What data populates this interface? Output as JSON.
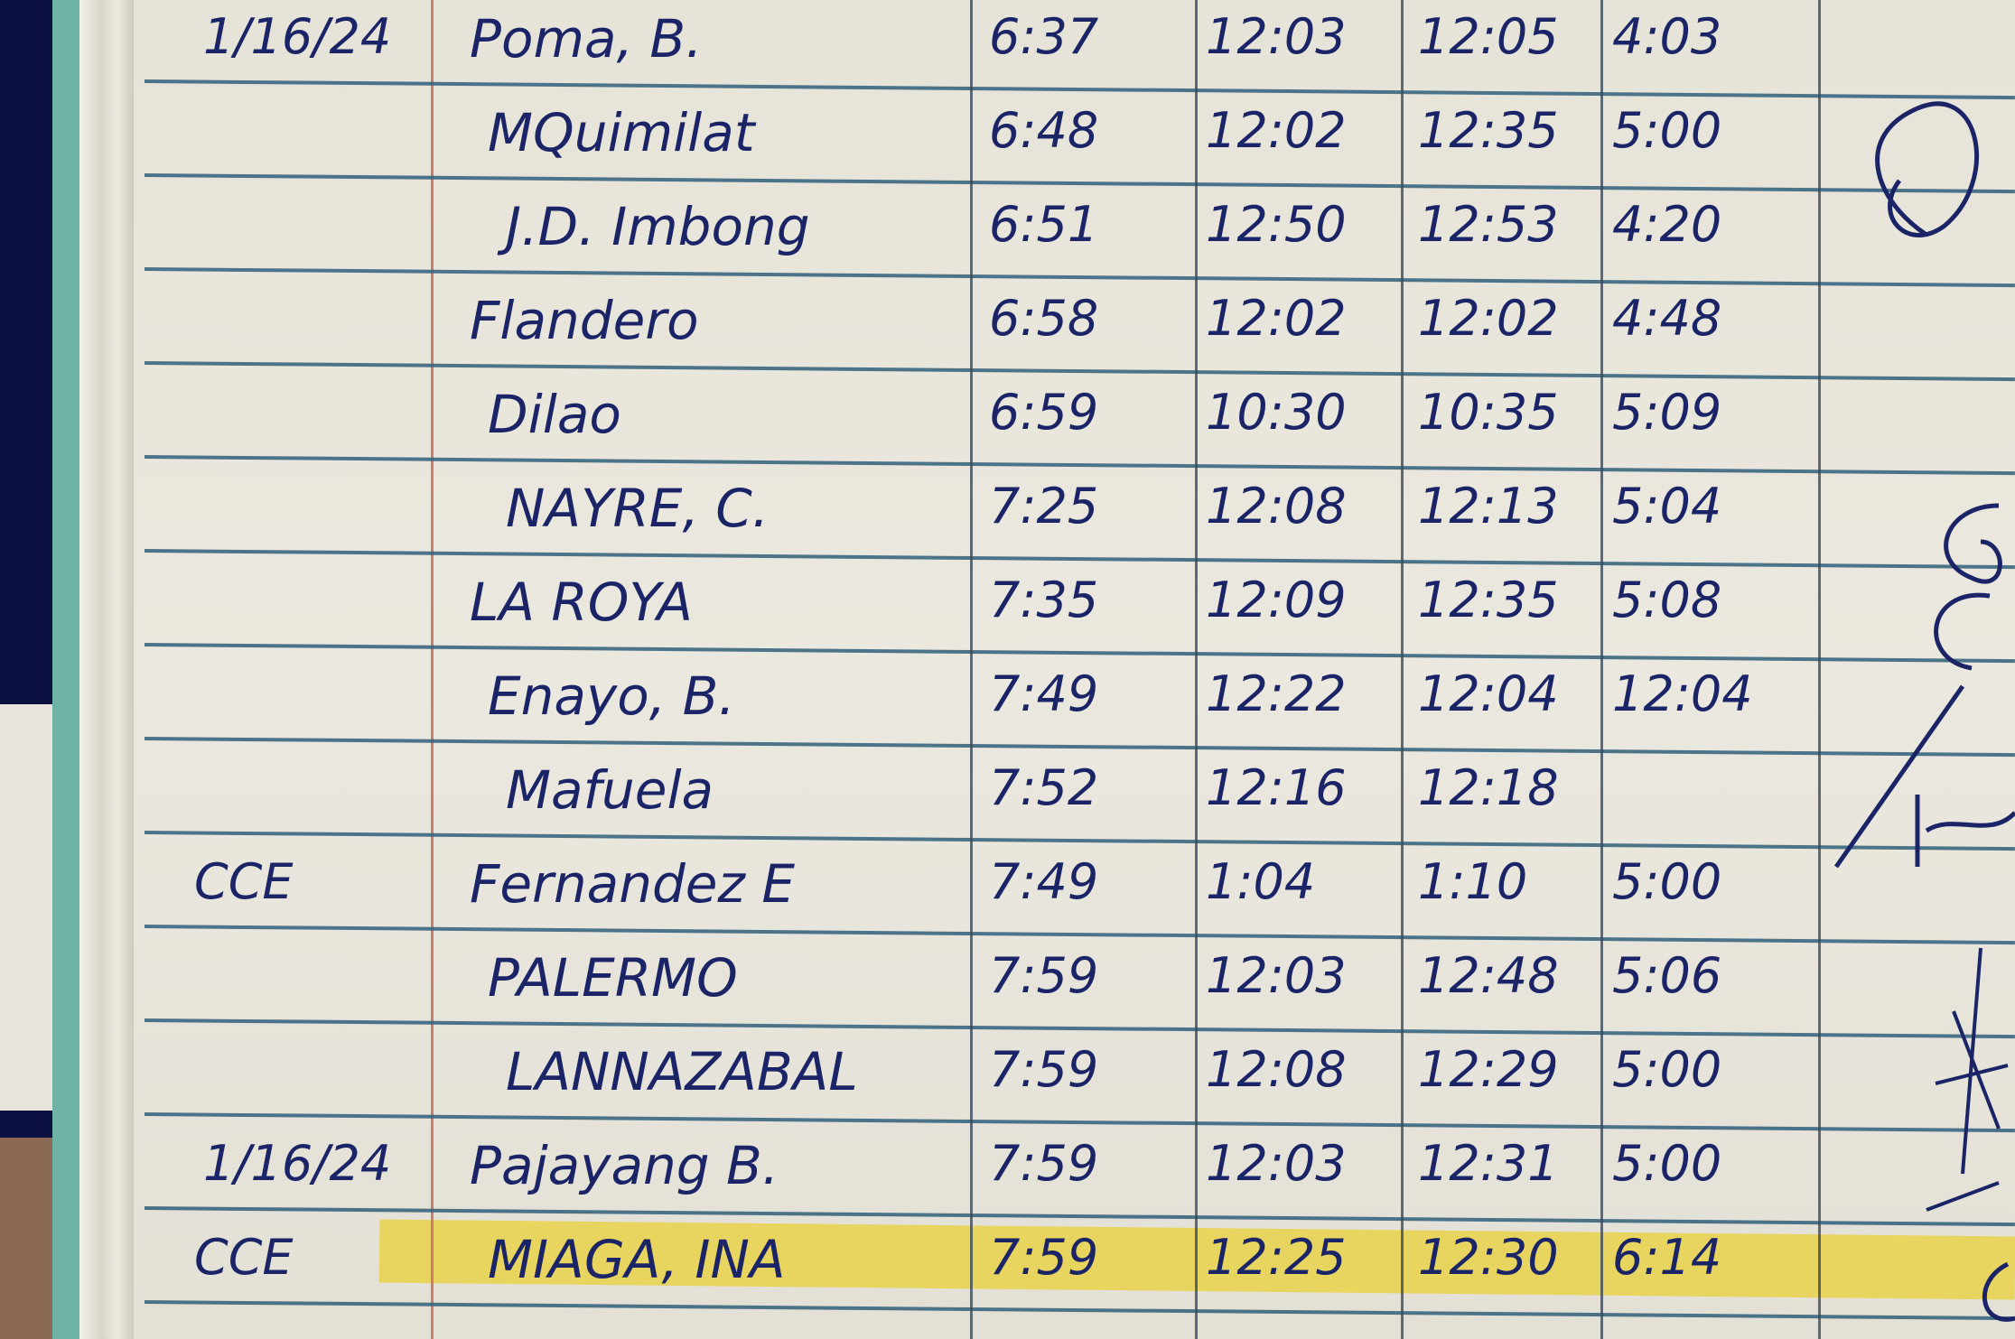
{
  "colors": {
    "ink": "#1b2466",
    "rule_line": "#2f5f7a",
    "margin_line": "#d07c6a",
    "highlight": "#e8d24a"
  },
  "rows": [
    {
      "date": "1/16/24",
      "dept": "",
      "name": "Poma, B.",
      "am_in": "6:37",
      "am_out": "12:03",
      "pm_in": "12:05",
      "pm_out": "4:03",
      "highlighted": false
    },
    {
      "date": "",
      "dept": "",
      "name": "MQuimilat",
      "am_in": "6:48",
      "am_out": "12:02",
      "pm_in": "12:35",
      "pm_out": "5:00",
      "highlighted": false
    },
    {
      "date": "",
      "dept": "",
      "name": "J.D. Imbong",
      "am_in": "6:51",
      "am_out": "12:50",
      "pm_in": "12:53",
      "pm_out": "4:20",
      "highlighted": false
    },
    {
      "date": "",
      "dept": "",
      "name": "Flandero",
      "am_in": "6:58",
      "am_out": "12:02",
      "pm_in": "12:02",
      "pm_out": "4:48",
      "highlighted": false
    },
    {
      "date": "",
      "dept": "",
      "name": "Dilao",
      "am_in": "6:59",
      "am_out": "10:30",
      "pm_in": "10:35",
      "pm_out": "5:09",
      "highlighted": false
    },
    {
      "date": "",
      "dept": "",
      "name": "NAYRE, C.",
      "am_in": "7:25",
      "am_out": "12:08",
      "pm_in": "12:13",
      "pm_out": "5:04",
      "highlighted": false
    },
    {
      "date": "",
      "dept": "",
      "name": "LA ROYA",
      "am_in": "7:35",
      "am_out": "12:09",
      "pm_in": "12:35",
      "pm_out": "5:08",
      "highlighted": false
    },
    {
      "date": "",
      "dept": "",
      "name": "Enayo, B.",
      "am_in": "7:49",
      "am_out": "12:22",
      "pm_in": "12:04",
      "pm_out": "12:04",
      "highlighted": false
    },
    {
      "date": "",
      "dept": "",
      "name": "Mafuela",
      "am_in": "7:52",
      "am_out": "12:16",
      "pm_in": "12:18",
      "pm_out": "",
      "highlighted": false
    },
    {
      "date": "",
      "dept": "CCE",
      "name": "Fernandez E",
      "am_in": "7:49",
      "am_out": "1:04",
      "pm_in": "1:10",
      "pm_out": "5:00",
      "highlighted": false
    },
    {
      "date": "",
      "dept": "",
      "name": "PALERMO",
      "am_in": "7:59",
      "am_out": "12:03",
      "pm_in": "12:48",
      "pm_out": "5:06",
      "highlighted": false
    },
    {
      "date": "",
      "dept": "",
      "name": "LANNAZABAL",
      "am_in": "7:59",
      "am_out": "12:08",
      "pm_in": "12:29",
      "pm_out": "5:00",
      "highlighted": false
    },
    {
      "date": "1/16/24",
      "dept": "",
      "name": "Pajayang B.",
      "am_in": "7:59",
      "am_out": "12:03",
      "pm_in": "12:31",
      "pm_out": "5:00",
      "highlighted": false
    },
    {
      "date": "",
      "dept": "CCE",
      "name": "MIAGA, INA",
      "am_in": "7:59",
      "am_out": "12:25",
      "pm_in": "12:30",
      "pm_out": "6:14",
      "highlighted": true
    }
  ]
}
